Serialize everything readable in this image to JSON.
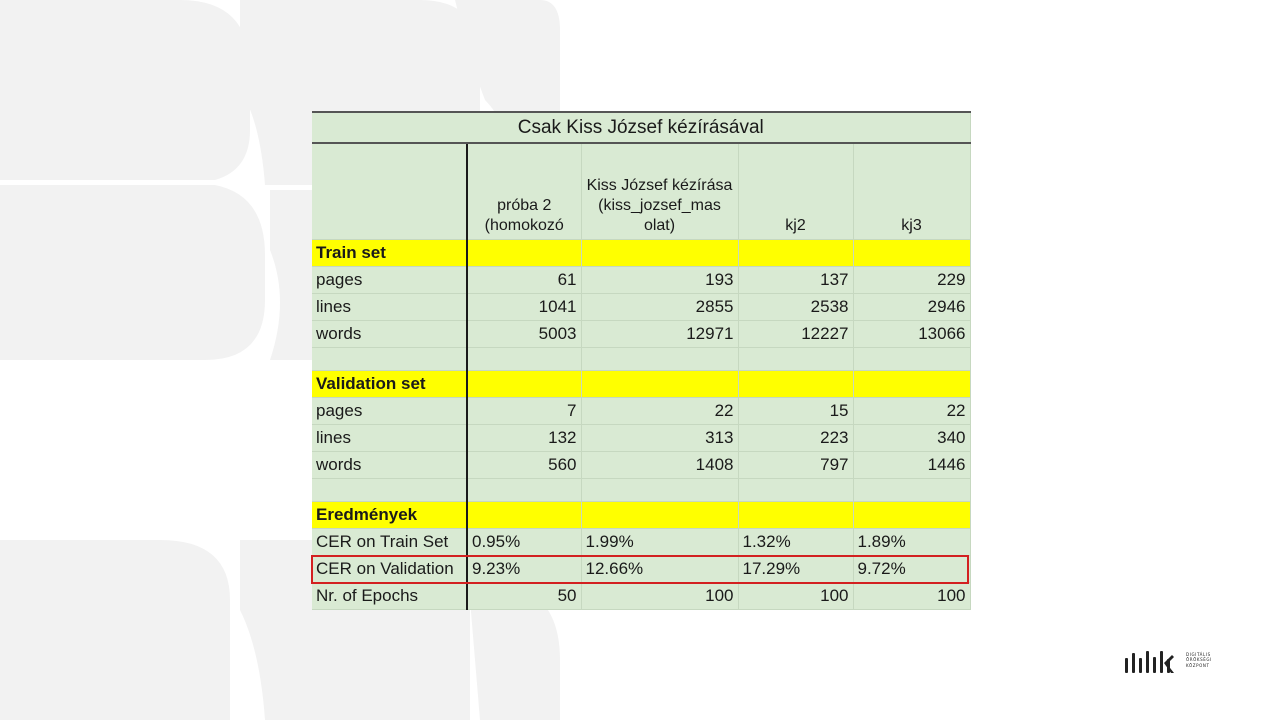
{
  "table": {
    "title": "Csak Kiss József kézírásával",
    "columns": [
      "",
      "próba 2 (homokozó",
      "Kiss József kézírása (kiss_jozsef_mas olat)",
      "kj2",
      "kj3"
    ],
    "sections": [
      {
        "label": "Train set",
        "rows": [
          {
            "label": "pages",
            "values": [
              "61",
              "193",
              "137",
              "229"
            ]
          },
          {
            "label": "lines",
            "values": [
              "1041",
              "2855",
              "2538",
              "2946"
            ]
          },
          {
            "label": "words",
            "values": [
              "5003",
              "12971",
              "12227",
              "13066"
            ]
          }
        ]
      },
      {
        "label": "Validation set",
        "rows": [
          {
            "label": "pages",
            "values": [
              "7",
              "22",
              "15",
              "22"
            ]
          },
          {
            "label": "lines",
            "values": [
              "132",
              "313",
              "223",
              "340"
            ]
          },
          {
            "label": "words",
            "values": [
              "560",
              "1408",
              "797",
              "1446"
            ]
          }
        ]
      },
      {
        "label": "Eredmények",
        "rows": [
          {
            "label": "CER on Train Set",
            "values": [
              "0.95%",
              "1.99%",
              "1.32%",
              "1.89%"
            ]
          },
          {
            "label": "CER on Validation",
            "values": [
              "9.23%",
              "12.66%",
              "17.29%",
              "9.72%"
            ],
            "highlighted": true
          },
          {
            "label": "Nr. of Epochs",
            "values": [
              "50",
              "100",
              "100",
              "100"
            ]
          }
        ]
      }
    ]
  },
  "logo": {
    "name": "digitalis-oroksegi-kozpont-logo-icon",
    "text": [
      "DIGITÁLIS",
      "ÖRÖKSÉGI",
      "KÖZPONT"
    ]
  },
  "colors": {
    "cell_bg": "#d9ead3",
    "section_bg": "#ffff00",
    "highlight_border": "#d32020",
    "bg_shape": "#f1f1f1"
  }
}
